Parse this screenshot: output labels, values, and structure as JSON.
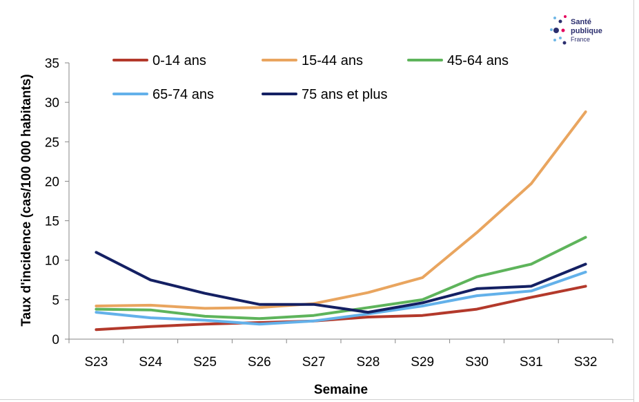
{
  "logo": {
    "line1": "Santé",
    "line2": "publique",
    "line3": "France",
    "colors": [
      "#2b2e6e",
      "#e4005c",
      "#6fb7e6"
    ]
  },
  "chart_data": {
    "type": "line",
    "xlabel": "Semaine",
    "ylabel": "Taux d'incidence (cas/100 000 habitants)",
    "ylim": [
      0,
      35
    ],
    "yticks": [
      0,
      5,
      10,
      15,
      20,
      25,
      30,
      35
    ],
    "categories": [
      "S23",
      "S24",
      "S25",
      "S26",
      "S27",
      "S28",
      "S29",
      "S30",
      "S31",
      "S32"
    ],
    "grid": false,
    "legend_position": "top",
    "series": [
      {
        "name": "0-14 ans",
        "color": "#b3392b",
        "values": [
          1.2,
          1.6,
          1.9,
          2.1,
          2.3,
          2.8,
          3.0,
          3.8,
          5.3,
          6.7
        ]
      },
      {
        "name": "15-44 ans",
        "color": "#e9a55f",
        "values": [
          4.2,
          4.3,
          3.9,
          4.0,
          4.5,
          5.9,
          7.8,
          13.5,
          19.7,
          28.8
        ]
      },
      {
        "name": "45-64 ans",
        "color": "#5eb45b",
        "values": [
          3.8,
          3.7,
          2.9,
          2.6,
          3.0,
          4.0,
          5.0,
          7.9,
          9.5,
          12.9
        ]
      },
      {
        "name": "65-74 ans",
        "color": "#63b1ea",
        "values": [
          3.4,
          2.7,
          2.4,
          1.9,
          2.3,
          3.2,
          4.2,
          5.5,
          6.1,
          8.5
        ]
      },
      {
        "name": "75 ans et plus",
        "color": "#142063",
        "values": [
          11.0,
          7.5,
          5.8,
          4.4,
          4.4,
          3.4,
          4.6,
          6.4,
          6.7,
          9.5
        ]
      }
    ]
  }
}
